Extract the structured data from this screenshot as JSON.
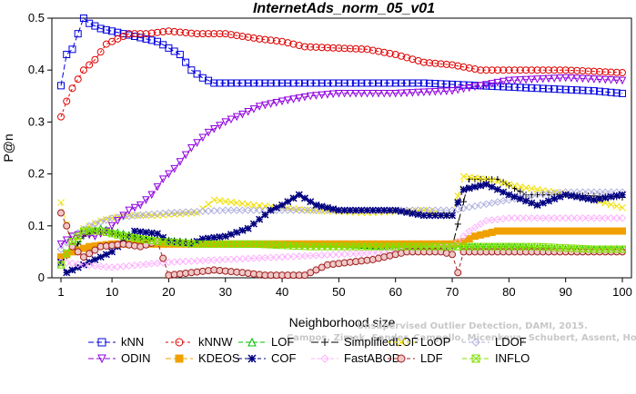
{
  "chart_data": {
    "type": "line",
    "title": "InternetAds_norm_05_v01",
    "xlabel": "Neighborhood size",
    "ylabel": "P@n",
    "xlim": [
      1,
      100
    ],
    "ylim": [
      0,
      0.5
    ],
    "xticks": [
      1,
      10,
      20,
      30,
      40,
      50,
      60,
      70,
      80,
      90,
      100
    ],
    "yticks": [
      0,
      0.1,
      0.2,
      0.3,
      0.4,
      0.5
    ],
    "grid": false,
    "legend_position": "bottom",
    "watermark": [
      "Unsupervised Outlier Detection, DAMI, 2015.",
      "Campos, Zimek, Sander, Campello, Micenkova, Schubert, Assent, Houle"
    ],
    "series": [
      {
        "name": "kNN",
        "color": "#0000e0",
        "marker": "square",
        "dash": "6,3",
        "points": [
          [
            1,
            0.37
          ],
          [
            2,
            0.43
          ],
          [
            3,
            0.44
          ],
          [
            4,
            0.47
          ],
          [
            5,
            0.5
          ],
          [
            6,
            0.49
          ],
          [
            8,
            0.48
          ],
          [
            10,
            0.475
          ],
          [
            14,
            0.465
          ],
          [
            18,
            0.455
          ],
          [
            22,
            0.43
          ],
          [
            24,
            0.4
          ],
          [
            26,
            0.385
          ],
          [
            28,
            0.375
          ],
          [
            35,
            0.375
          ],
          [
            45,
            0.375
          ],
          [
            55,
            0.375
          ],
          [
            65,
            0.375
          ],
          [
            75,
            0.37
          ],
          [
            85,
            0.365
          ],
          [
            95,
            0.36
          ],
          [
            100,
            0.355
          ]
        ]
      },
      {
        "name": "kNNW",
        "color": "#e00000",
        "marker": "circle",
        "dash": "3,3",
        "points": [
          [
            1,
            0.31
          ],
          [
            2,
            0.34
          ],
          [
            3,
            0.365
          ],
          [
            5,
            0.4
          ],
          [
            7,
            0.42
          ],
          [
            9,
            0.45
          ],
          [
            11,
            0.46
          ],
          [
            13,
            0.47
          ],
          [
            16,
            0.47
          ],
          [
            20,
            0.475
          ],
          [
            25,
            0.47
          ],
          [
            30,
            0.47
          ],
          [
            36,
            0.46
          ],
          [
            40,
            0.455
          ],
          [
            44,
            0.445
          ],
          [
            55,
            0.44
          ],
          [
            60,
            0.43
          ],
          [
            65,
            0.415
          ],
          [
            70,
            0.41
          ],
          [
            75,
            0.4
          ],
          [
            90,
            0.4
          ],
          [
            100,
            0.395
          ]
        ]
      },
      {
        "name": "LOF",
        "color": "#00c000",
        "marker": "triangle",
        "dash": "5,3",
        "points": [
          [
            1,
            0.03
          ],
          [
            3,
            0.06
          ],
          [
            5,
            0.09
          ],
          [
            8,
            0.095
          ],
          [
            12,
            0.085
          ],
          [
            16,
            0.075
          ],
          [
            22,
            0.07
          ],
          [
            30,
            0.065
          ],
          [
            40,
            0.065
          ],
          [
            50,
            0.065
          ],
          [
            60,
            0.06
          ],
          [
            70,
            0.06
          ],
          [
            80,
            0.06
          ],
          [
            90,
            0.055
          ],
          [
            100,
            0.055
          ]
        ]
      },
      {
        "name": "SimplifiedLOF",
        "color": "#000000",
        "marker": "plus",
        "dash": "8,3",
        "points": [
          [
            1,
            0.035
          ],
          [
            3,
            0.05
          ],
          [
            5,
            0.08
          ],
          [
            7,
            0.09
          ],
          [
            10,
            0.085
          ],
          [
            15,
            0.075
          ],
          [
            22,
            0.07
          ],
          [
            30,
            0.065
          ],
          [
            40,
            0.065
          ],
          [
            50,
            0.065
          ],
          [
            60,
            0.06
          ],
          [
            70,
            0.06
          ],
          [
            73,
            0.19
          ],
          [
            78,
            0.19
          ],
          [
            83,
            0.16
          ],
          [
            90,
            0.16
          ],
          [
            100,
            0.155
          ]
        ]
      },
      {
        "name": "LoOP",
        "color": "#f0e000",
        "marker": "x",
        "dash": "4,3",
        "points": [
          [
            1,
            0.145
          ],
          [
            3,
            0.06
          ],
          [
            5,
            0.095
          ],
          [
            8,
            0.11
          ],
          [
            12,
            0.12
          ],
          [
            18,
            0.12
          ],
          [
            25,
            0.125
          ],
          [
            28,
            0.15
          ],
          [
            35,
            0.14
          ],
          [
            45,
            0.13
          ],
          [
            55,
            0.125
          ],
          [
            65,
            0.13
          ],
          [
            70,
            0.12
          ],
          [
            72,
            0.195
          ],
          [
            76,
            0.19
          ],
          [
            82,
            0.175
          ],
          [
            88,
            0.165
          ],
          [
            95,
            0.15
          ],
          [
            100,
            0.135
          ]
        ]
      },
      {
        "name": "LDOF",
        "color": "#b0b0e0",
        "marker": "diamond",
        "dash": "4,3",
        "points": [
          [
            1,
            0.055
          ],
          [
            3,
            0.08
          ],
          [
            6,
            0.1
          ],
          [
            10,
            0.115
          ],
          [
            14,
            0.12
          ],
          [
            20,
            0.125
          ],
          [
            30,
            0.13
          ],
          [
            40,
            0.13
          ],
          [
            50,
            0.13
          ],
          [
            60,
            0.13
          ],
          [
            70,
            0.13
          ],
          [
            75,
            0.14
          ],
          [
            80,
            0.15
          ],
          [
            85,
            0.16
          ],
          [
            90,
            0.165
          ],
          [
            100,
            0.165
          ]
        ]
      },
      {
        "name": "ODIN",
        "color": "#9000e0",
        "marker": "triangle-down",
        "dash": "6,3",
        "points": [
          [
            1,
            0.065
          ],
          [
            3,
            0.08
          ],
          [
            5,
            0.085
          ],
          [
            7,
            0.08
          ],
          [
            9,
            0.09
          ],
          [
            11,
            0.11
          ],
          [
            13,
            0.13
          ],
          [
            15,
            0.14
          ],
          [
            17,
            0.16
          ],
          [
            19,
            0.19
          ],
          [
            21,
            0.21
          ],
          [
            24,
            0.25
          ],
          [
            27,
            0.28
          ],
          [
            30,
            0.3
          ],
          [
            33,
            0.315
          ],
          [
            36,
            0.33
          ],
          [
            40,
            0.34
          ],
          [
            45,
            0.35
          ],
          [
            50,
            0.355
          ],
          [
            60,
            0.355
          ],
          [
            70,
            0.36
          ],
          [
            75,
            0.37
          ],
          [
            80,
            0.38
          ],
          [
            90,
            0.385
          ],
          [
            100,
            0.38
          ]
        ]
      },
      {
        "name": "KDEOS",
        "color": "#f0a000",
        "marker": "square-filled",
        "dash": "6,3",
        "points": [
          [
            1,
            0.04
          ],
          [
            3,
            0.05
          ],
          [
            6,
            0.06
          ],
          [
            10,
            0.065
          ],
          [
            20,
            0.065
          ],
          [
            30,
            0.065
          ],
          [
            40,
            0.065
          ],
          [
            50,
            0.065
          ],
          [
            60,
            0.065
          ],
          [
            70,
            0.065
          ],
          [
            72,
            0.07
          ],
          [
            74,
            0.08
          ],
          [
            78,
            0.09
          ],
          [
            90,
            0.09
          ],
          [
            100,
            0.09
          ]
        ]
      },
      {
        "name": "COF",
        "color": "#000080",
        "marker": "star",
        "dash": "4,3",
        "points": [
          [
            1,
            0.03
          ],
          [
            2,
            0.01
          ],
          [
            4,
            0.02
          ],
          [
            6,
            0.03
          ],
          [
            8,
            0.04
          ],
          [
            10,
            0.05
          ],
          [
            12,
            0.07
          ],
          [
            14,
            0.09
          ],
          [
            18,
            0.085
          ],
          [
            20,
            0.07
          ],
          [
            24,
            0.065
          ],
          [
            26,
            0.075
          ],
          [
            30,
            0.08
          ],
          [
            34,
            0.095
          ],
          [
            38,
            0.13
          ],
          [
            40,
            0.14
          ],
          [
            43,
            0.16
          ],
          [
            46,
            0.14
          ],
          [
            50,
            0.13
          ],
          [
            55,
            0.13
          ],
          [
            60,
            0.13
          ],
          [
            65,
            0.12
          ],
          [
            70,
            0.12
          ],
          [
            72,
            0.17
          ],
          [
            76,
            0.18
          ],
          [
            80,
            0.16
          ],
          [
            85,
            0.14
          ],
          [
            90,
            0.16
          ],
          [
            95,
            0.15
          ],
          [
            100,
            0.16
          ]
        ]
      },
      {
        "name": "FastABOD",
        "color": "#ffb0ff",
        "marker": "diamond",
        "dash": "4,3",
        "points": [
          [
            1,
            0.03
          ],
          [
            5,
            0.025
          ],
          [
            10,
            0.02
          ],
          [
            15,
            0.025
          ],
          [
            20,
            0.03
          ],
          [
            30,
            0.035
          ],
          [
            40,
            0.04
          ],
          [
            50,
            0.045
          ],
          [
            60,
            0.05
          ],
          [
            70,
            0.06
          ],
          [
            73,
            0.09
          ],
          [
            76,
            0.11
          ],
          [
            80,
            0.115
          ],
          [
            90,
            0.115
          ],
          [
            100,
            0.115
          ]
        ]
      },
      {
        "name": "LDF",
        "color": "#a02020",
        "marker": "circle-dot",
        "dash": "4,3",
        "points": [
          [
            1,
            0.125
          ],
          [
            2,
            0.1
          ],
          [
            3,
            0.06
          ],
          [
            5,
            0.04
          ],
          [
            8,
            0.06
          ],
          [
            12,
            0.065
          ],
          [
            15,
            0.06
          ],
          [
            18,
            0.07
          ],
          [
            20,
            0.005
          ],
          [
            24,
            0.01
          ],
          [
            28,
            0.015
          ],
          [
            33,
            0.01
          ],
          [
            37,
            0.005
          ],
          [
            42,
            0.005
          ],
          [
            44,
            0.005
          ],
          [
            46,
            0.015
          ],
          [
            48,
            0.025
          ],
          [
            52,
            0.03
          ],
          [
            56,
            0.035
          ],
          [
            62,
            0.05
          ],
          [
            68,
            0.05
          ],
          [
            70,
            0.045
          ],
          [
            71,
            0.01
          ],
          [
            72,
            0.05
          ],
          [
            80,
            0.05
          ],
          [
            90,
            0.05
          ],
          [
            100,
            0.05
          ]
        ]
      },
      {
        "name": "INFLO",
        "color": "#80e000",
        "marker": "square-x",
        "dash": "5,3",
        "points": [
          [
            1,
            0.025
          ],
          [
            3,
            0.07
          ],
          [
            5,
            0.09
          ],
          [
            8,
            0.09
          ],
          [
            12,
            0.08
          ],
          [
            18,
            0.07
          ],
          [
            25,
            0.065
          ],
          [
            35,
            0.065
          ],
          [
            45,
            0.06
          ],
          [
            55,
            0.06
          ],
          [
            65,
            0.06
          ],
          [
            75,
            0.06
          ],
          [
            85,
            0.06
          ],
          [
            95,
            0.055
          ],
          [
            100,
            0.055
          ]
        ]
      }
    ]
  }
}
